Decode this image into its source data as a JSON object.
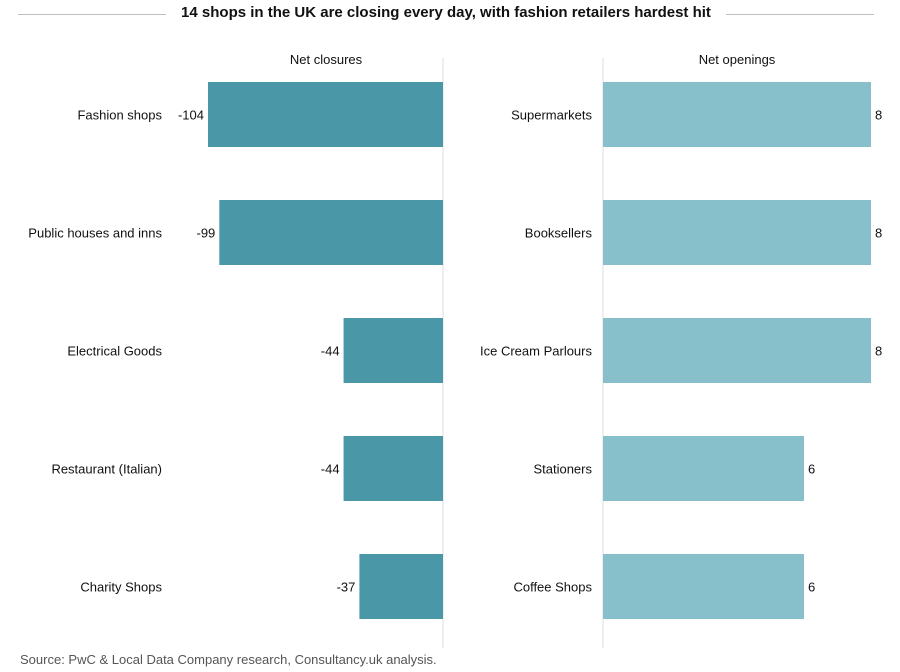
{
  "title": "14 shops in the UK are closing every day, with fashion retailers hardest hit",
  "source": "Source: PwC & Local Data Company research, Consultancy.uk analysis.",
  "colors": {
    "closures": "#4a97a7",
    "openings": "#87c0cb",
    "axis": "#dddddd"
  },
  "chart_data": [
    {
      "type": "bar",
      "orientation": "horizontal",
      "title": "Net closures",
      "categories": [
        "Fashion shops",
        "Public houses and inns",
        "Electrical Goods",
        "Restaurant (Italian)",
        "Charity Shops"
      ],
      "values": [
        -104,
        -99,
        -44,
        -44,
        -37
      ],
      "labels": [
        "-104",
        "-99",
        "-44",
        "-44",
        "-37"
      ],
      "xlim": [
        -104,
        0
      ]
    },
    {
      "type": "bar",
      "orientation": "horizontal",
      "title": "Net openings",
      "categories": [
        "Supermarkets",
        "Booksellers",
        "Ice Cream Parlours",
        "Stationers",
        "Coffee Shops"
      ],
      "values": [
        8,
        8,
        8,
        6,
        6
      ],
      "labels": [
        "8",
        "8",
        "8",
        "6",
        "6"
      ],
      "xlim": [
        0,
        8
      ]
    }
  ]
}
